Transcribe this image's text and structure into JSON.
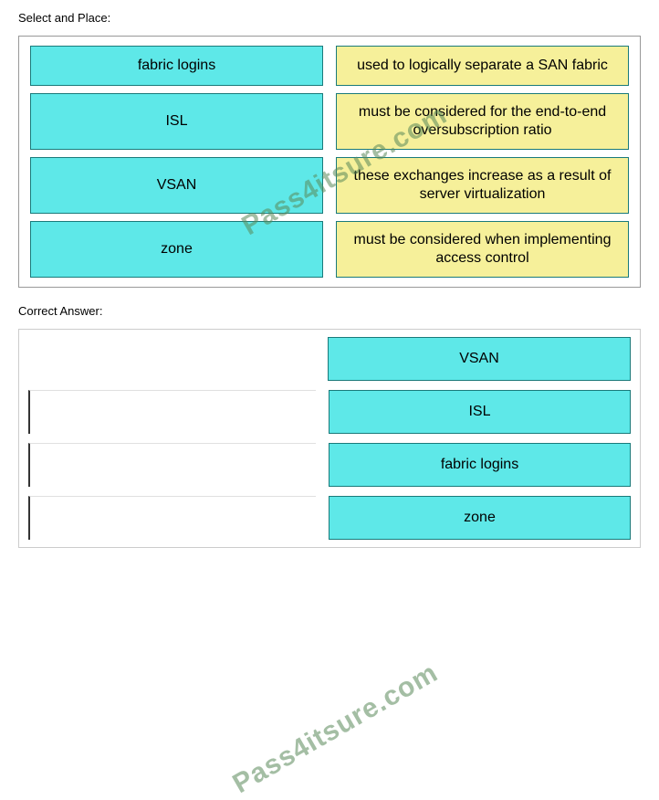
{
  "select_label": "Select and Place:",
  "question": {
    "rows": [
      {
        "left": "fabric logins",
        "right": "used to logically separate a SAN fabric"
      },
      {
        "left": "ISL",
        "right": "must be considered for the end-to-end oversubscription ratio"
      },
      {
        "left": "VSAN",
        "right": "these exchanges increase as a result of server virtualization"
      },
      {
        "left": "zone",
        "right": "must be considered when implementing access control"
      }
    ]
  },
  "answer_label": "Correct Answer:",
  "answer": {
    "rows": [
      {
        "right": "VSAN"
      },
      {
        "right": "ISL"
      },
      {
        "right": "fabric logins"
      },
      {
        "right": "zone"
      }
    ]
  },
  "watermark_text": "Pass4itsure.com",
  "colors": {
    "left_box_bg": "#5ee8e8",
    "right_box_bg": "#f6f09a",
    "box_border": "#1a7a7a",
    "watermark": "#5a8a5a"
  }
}
